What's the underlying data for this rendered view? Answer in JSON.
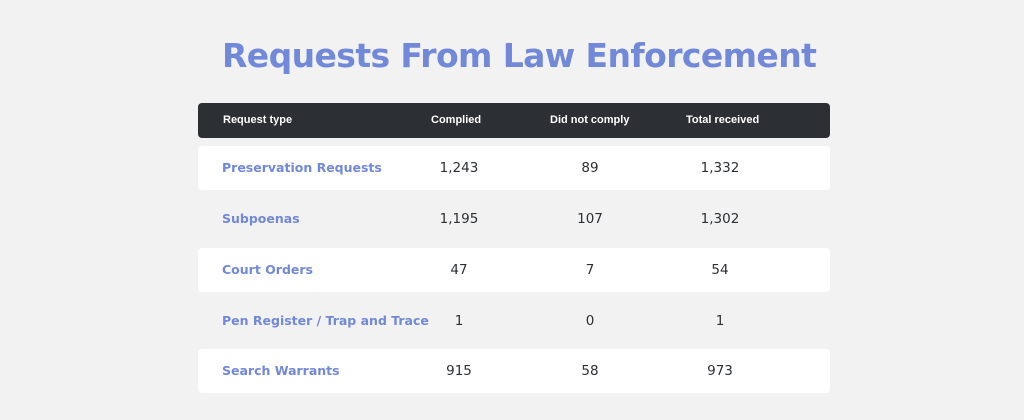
{
  "page": {
    "title": "Requests From Law Enforcement"
  },
  "chart_data": {
    "type": "table",
    "title": "Requests From Law Enforcement",
    "columns": [
      "Request type",
      "Complied",
      "Did not comply",
      "Total received"
    ],
    "rows": [
      {
        "type": "Preservation Requests",
        "complied": "1,243",
        "did_not_comply": "89",
        "total": "1,332"
      },
      {
        "type": "Subpoenas",
        "complied": "1,195",
        "did_not_comply": "107",
        "total": "1,302"
      },
      {
        "type": "Court Orders",
        "complied": "47",
        "did_not_comply": "7",
        "total": "54"
      },
      {
        "type": "Pen Register / Trap and Trace",
        "complied": "1",
        "did_not_comply": "0",
        "total": "1"
      },
      {
        "type": "Search Warrants",
        "complied": "915",
        "did_not_comply": "58",
        "total": "973"
      }
    ]
  },
  "colors": {
    "page_background": "#f2f2f3",
    "title": "#7288d8",
    "header_background": "#2c2f33",
    "header_text": "#ffffff",
    "row_label": "#7288d8",
    "row_value": "#2c2f33",
    "row_fill": "#ffffff"
  }
}
